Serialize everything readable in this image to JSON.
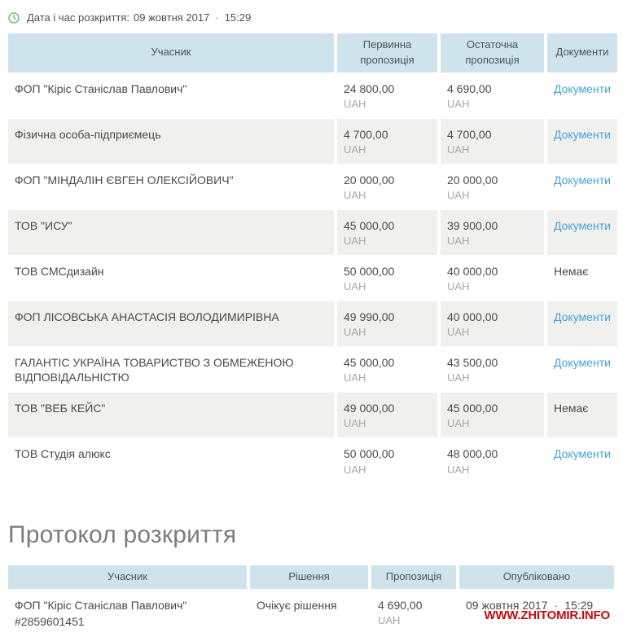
{
  "colors": {
    "header-bg": "#cfe3ec",
    "stripe": "#f0f0ee",
    "link": "#47a3d9",
    "text": "#4a4a4a",
    "muted": "#a8a8a8",
    "title": "#7c7c7c",
    "watermark-red": "#c00c0c",
    "clock-green": "#67bf69"
  },
  "disclosure": {
    "label": "Дата і час розкриття:",
    "date": "09 жовтня 2017",
    "separator": "·",
    "time": "15:29"
  },
  "bids_table": {
    "headers": [
      "Учасник",
      "Первинна пропозиція",
      "Остаточна пропозиція",
      "Документи"
    ],
    "currency": "UAH",
    "rows": [
      {
        "participant": "ФОП \"Кіріс Станіслав Павлович\"",
        "initial": "24 800,00",
        "final": "4 690,00",
        "documents": "Документи",
        "documents_link": true
      },
      {
        "participant": "Фізична особа-підприємець",
        "initial": "4 700,00",
        "final": "4 700,00",
        "documents": "Документи",
        "documents_link": true
      },
      {
        "participant": "ФОП \"МІНДАЛІН ЄВГЕН ОЛЕКСІЙОВИЧ\"",
        "initial": "20 000,00",
        "final": "20 000,00",
        "documents": "Документи",
        "documents_link": true
      },
      {
        "participant": "ТОВ \"ИСУ\"",
        "initial": "45 000,00",
        "final": "39 900,00",
        "documents": "Документи",
        "documents_link": true
      },
      {
        "participant": "ТОВ СМСдизайн",
        "initial": "50 000,00",
        "final": "40 000,00",
        "documents": "Немає",
        "documents_link": false
      },
      {
        "participant": "ФОП ЛІСОВСЬКА АНАСТАСІЯ ВОЛОДИМИРІВНА",
        "initial": "49 990,00",
        "final": "40 000,00",
        "documents": "Документи",
        "documents_link": true
      },
      {
        "participant": "ГАЛАНТІС УКРАЇНА ТОВАРИСТВО З ОБМЕЖЕНОЮ ВІДПОВІДАЛЬНІСТЮ",
        "initial": "45 000,00",
        "final": "43 500,00",
        "documents": "Документи",
        "documents_link": true
      },
      {
        "participant": "ТОВ \"ВЕБ КЕЙС\"",
        "initial": "49 000,00",
        "final": "45 000,00",
        "documents": "Немає",
        "documents_link": false
      },
      {
        "participant": "ТОВ Студія алюкс",
        "initial": "50 000,00",
        "final": "48 000,00",
        "documents": "Документи",
        "documents_link": true
      }
    ]
  },
  "protocol": {
    "title": "Протокол розкриття",
    "headers": [
      "Учасник",
      "Рішення",
      "Пропозиція",
      "Опубліковано"
    ],
    "rows": [
      {
        "participant": "ФОП \"Кіріс Станіслав Павлович\"",
        "participant_code": "#2859601451",
        "decision": "Очікує рішення",
        "proposal": "4 690,00",
        "currency": "UAH",
        "published_date": "09 жовтня 2017",
        "separator": "·",
        "published_time": "15:29"
      }
    ]
  },
  "watermark": "WWW.ZHITOMIR.INFO"
}
